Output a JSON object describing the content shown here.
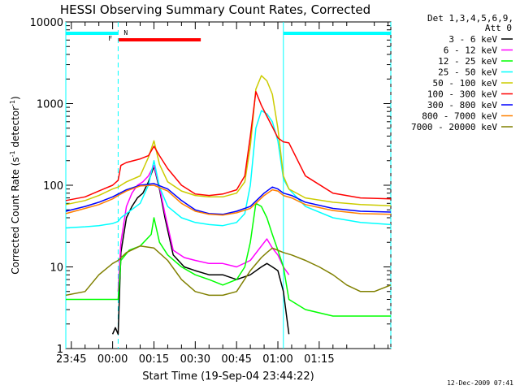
{
  "chart_data": {
    "type": "line",
    "title": "HESSI Observing Summary Count Rates, Corrected",
    "xlabel": "Start Time (19-Sep-04 23:44:22)",
    "ylabel_main": "Corrected Count Rate (s",
    "ylabel_sup1": "-1",
    "ylabel_mid": " detector",
    "ylabel_sup2": "-1",
    "ylabel_end": ")",
    "y_scale": "log",
    "ylim": [
      1,
      10000
    ],
    "xlim_minutes": [
      -17,
      101
    ],
    "x_ticks": [
      {
        "label": "23:45",
        "m": -15
      },
      {
        "label": "00:00",
        "m": 0
      },
      {
        "label": "00:15",
        "m": 15
      },
      {
        "label": "00:30",
        "m": 30
      },
      {
        "label": "00:45",
        "m": 45
      },
      {
        "label": "01:00",
        "m": 60
      },
      {
        "label": "01:15",
        "m": 75
      }
    ],
    "y_ticks": [
      {
        "label": "1",
        "v": 1
      },
      {
        "label": "10",
        "v": 10
      },
      {
        "label": "100",
        "v": 100
      },
      {
        "label": "1000",
        "v": 1000
      },
      {
        "label": "10000",
        "v": 10000
      }
    ],
    "legend_header": [
      "Det 1,3,4,5,6,9,",
      "Att 0"
    ],
    "legend_position": "right",
    "footer_date": "12-Dec-2009 07:41",
    "flags": {
      "night_label": "N",
      "night_intervals": [
        [
          -17,
          2
        ],
        [
          62,
          101
        ]
      ],
      "flare_label": "F",
      "flare_interval": [
        2,
        32
      ],
      "saa_lines": [
        -17,
        2,
        62,
        101
      ],
      "night_color": "#00ffff",
      "flare_color": "#ff0000"
    },
    "series": [
      {
        "name": "3 - 6 keV",
        "color": "#000000",
        "x": [
          -17,
          -1,
          0,
          1,
          2,
          3,
          5,
          7,
          9,
          11,
          13,
          15,
          17,
          19,
          22,
          26,
          30,
          35,
          40,
          45,
          50,
          54,
          56,
          58,
          60,
          62,
          64,
          66,
          101
        ],
        "y": [
          null,
          null,
          1.5,
          1.8,
          1.5,
          15,
          40,
          55,
          70,
          80,
          110,
          170,
          90,
          40,
          14,
          10,
          9,
          8,
          8,
          7,
          8,
          10,
          11,
          10,
          9,
          5,
          1.5,
          null,
          null
        ]
      },
      {
        "name": "6 - 12 keV",
        "color": "#ff00ff",
        "x": [
          2,
          3,
          5,
          7,
          9,
          11,
          13,
          15,
          17,
          19,
          22,
          26,
          30,
          35,
          40,
          45,
          50,
          54,
          56,
          58,
          60,
          62,
          64
        ],
        "y": [
          5,
          20,
          55,
          80,
          100,
          110,
          130,
          175,
          95,
          45,
          16,
          13,
          12,
          11,
          11,
          10,
          12,
          18,
          22,
          17,
          14,
          10,
          8
        ]
      },
      {
        "name": "12 - 25 keV",
        "color": "#00ff00",
        "x": [
          -17,
          -10,
          -5,
          0,
          2,
          3,
          6,
          10,
          14,
          15,
          17,
          20,
          25,
          30,
          35,
          40,
          45,
          48,
          50,
          52,
          54,
          56,
          58,
          60,
          62,
          64,
          70,
          80,
          90,
          101
        ],
        "y": [
          4,
          4,
          4,
          4,
          4,
          12,
          16,
          18,
          25,
          40,
          20,
          14,
          10,
          8,
          7,
          6,
          7,
          10,
          20,
          60,
          55,
          40,
          25,
          16,
          10,
          4,
          3,
          2.5,
          2.5,
          2.5
        ]
      },
      {
        "name": "25 - 50 keV",
        "color": "#00ffff",
        "x": [
          -17,
          -10,
          -5,
          0,
          2,
          3,
          5,
          10,
          13,
          15,
          17,
          20,
          25,
          30,
          35,
          40,
          45,
          48,
          50,
          52,
          54,
          56,
          58,
          60,
          62,
          64,
          70,
          80,
          90,
          101
        ],
        "y": [
          30,
          31,
          32,
          34,
          36,
          40,
          45,
          60,
          100,
          200,
          95,
          55,
          40,
          35,
          33,
          32,
          35,
          45,
          100,
          500,
          820,
          750,
          600,
          350,
          120,
          90,
          55,
          40,
          35,
          33
        ]
      },
      {
        "name": "50 - 100 keV",
        "color": "#cccc00",
        "x": [
          -17,
          -10,
          -5,
          0,
          2,
          3,
          5,
          10,
          13,
          15,
          17,
          20,
          25,
          30,
          35,
          40,
          45,
          48,
          50,
          52,
          54,
          56,
          58,
          60,
          62,
          64,
          70,
          80,
          90,
          101
        ],
        "y": [
          58,
          65,
          75,
          90,
          95,
          100,
          110,
          130,
          220,
          350,
          180,
          110,
          85,
          75,
          72,
          72,
          80,
          110,
          300,
          1500,
          2200,
          1900,
          1300,
          500,
          130,
          90,
          70,
          62,
          58,
          56
        ]
      },
      {
        "name": "100 - 300 keV",
        "color": "#ff0000",
        "x": [
          -17,
          -10,
          -5,
          0,
          2,
          3,
          5,
          10,
          13,
          15,
          17,
          20,
          25,
          30,
          35,
          40,
          45,
          48,
          50,
          52,
          54,
          56,
          58,
          60,
          62,
          64,
          70,
          80,
          90,
          101
        ],
        "y": [
          65,
          72,
          85,
          100,
          115,
          175,
          190,
          210,
          230,
          300,
          230,
          160,
          100,
          78,
          75,
          78,
          88,
          130,
          400,
          1400,
          950,
          700,
          520,
          380,
          340,
          330,
          130,
          80,
          70,
          68
        ]
      },
      {
        "name": "300 - 800 keV",
        "color": "#0000ff",
        "x": [
          -17,
          -10,
          -5,
          0,
          2,
          5,
          10,
          15,
          20,
          25,
          30,
          35,
          40,
          45,
          50,
          55,
          58,
          60,
          62,
          65,
          70,
          80,
          90,
          101
        ],
        "y": [
          48,
          55,
          62,
          72,
          78,
          88,
          100,
          105,
          90,
          65,
          50,
          45,
          44,
          48,
          55,
          80,
          95,
          90,
          80,
          75,
          62,
          52,
          48,
          47
        ]
      },
      {
        "name": "800 - 7000 keV",
        "color": "#ff8000",
        "x": [
          -17,
          -10,
          -5,
          0,
          2,
          5,
          10,
          15,
          20,
          25,
          30,
          35,
          40,
          45,
          50,
          55,
          58,
          60,
          62,
          65,
          70,
          80,
          90,
          101
        ],
        "y": [
          45,
          52,
          58,
          68,
          75,
          85,
          98,
          100,
          85,
          60,
          48,
          44,
          43,
          46,
          52,
          75,
          88,
          85,
          75,
          70,
          58,
          49,
          45,
          44
        ]
      },
      {
        "name": "7000 - 20000 keV",
        "color": "#808000",
        "x": [
          -17,
          -10,
          -5,
          0,
          2,
          5,
          10,
          15,
          20,
          25,
          30,
          35,
          40,
          45,
          50,
          54,
          56,
          58,
          60,
          62,
          65,
          70,
          75,
          80,
          85,
          90,
          95,
          101
        ],
        "y": [
          4.5,
          5,
          8,
          11,
          12,
          15,
          18,
          17,
          12,
          7,
          5,
          4.5,
          4.5,
          5,
          9,
          13,
          15,
          17,
          16,
          15,
          14,
          12,
          10,
          8,
          6,
          5,
          5,
          6
        ]
      }
    ]
  }
}
